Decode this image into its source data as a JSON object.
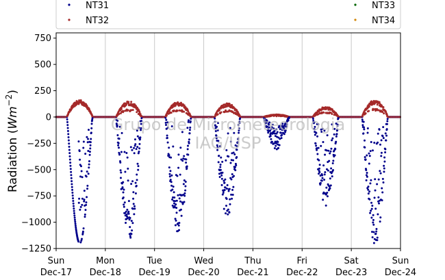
{
  "chart_data": {
    "type": "scatter",
    "title": "",
    "ylabel_prefix": "Radiation (",
    "ylabel_math": "Wm",
    "ylabel_exp": "−2",
    "ylabel_suffix": ")",
    "ylim": [
      -1250,
      800
    ],
    "xlim": [
      0,
      7
    ],
    "yticks": [
      -1250,
      -1000,
      -750,
      -500,
      -250,
      0,
      250,
      500,
      750
    ],
    "ytick_labels": [
      "−1250",
      "−1000",
      "−750",
      "−500",
      "−250",
      "0",
      "250",
      "500",
      "750"
    ],
    "xticks": [
      {
        "day": "Sun",
        "date": "Dec-17"
      },
      {
        "day": "Mon",
        "date": "Dec-18"
      },
      {
        "day": "Tue",
        "date": "Dec-19"
      },
      {
        "day": "Wed",
        "date": "Dec-20"
      },
      {
        "day": "Thu",
        "date": "Dec-21"
      },
      {
        "day": "Fri",
        "date": "Dec-22"
      },
      {
        "day": "Sat",
        "date": "Dec-23"
      },
      {
        "day": "Sun",
        "date": "Dec-24"
      }
    ],
    "grid": "vertical",
    "legend_position": "top",
    "watermark": [
      "Grupo de Micrometeorologia",
      "IAG/USP"
    ],
    "series": [
      {
        "name": "NT31",
        "color": "#00008b"
      },
      {
        "name": "NT32",
        "color": "#a52a2a"
      },
      {
        "name": "NT33",
        "color": "#006400"
      },
      {
        "name": "NT34",
        "color": "#d2870a"
      }
    ],
    "daily": [
      {
        "day_index": 0,
        "nt32_peak": 140,
        "nt31_min": -1200,
        "mode": "smooth"
      },
      {
        "day_index": 1,
        "nt32_peak": 130,
        "nt31_min": -1180,
        "mode": "scatter"
      },
      {
        "day_index": 2,
        "nt32_peak": 125,
        "nt31_min": -1100,
        "mode": "scatter"
      },
      {
        "day_index": 3,
        "nt32_peak": 115,
        "nt31_min": -960,
        "mode": "scatter"
      },
      {
        "day_index": 4,
        "nt32_peak": 25,
        "nt31_min": -310,
        "mode": "cloudy"
      },
      {
        "day_index": 5,
        "nt32_peak": 85,
        "nt31_min": -850,
        "mode": "scatter"
      },
      {
        "day_index": 6,
        "nt32_peak": 140,
        "nt31_min": -1240,
        "mode": "scatter"
      }
    ]
  }
}
